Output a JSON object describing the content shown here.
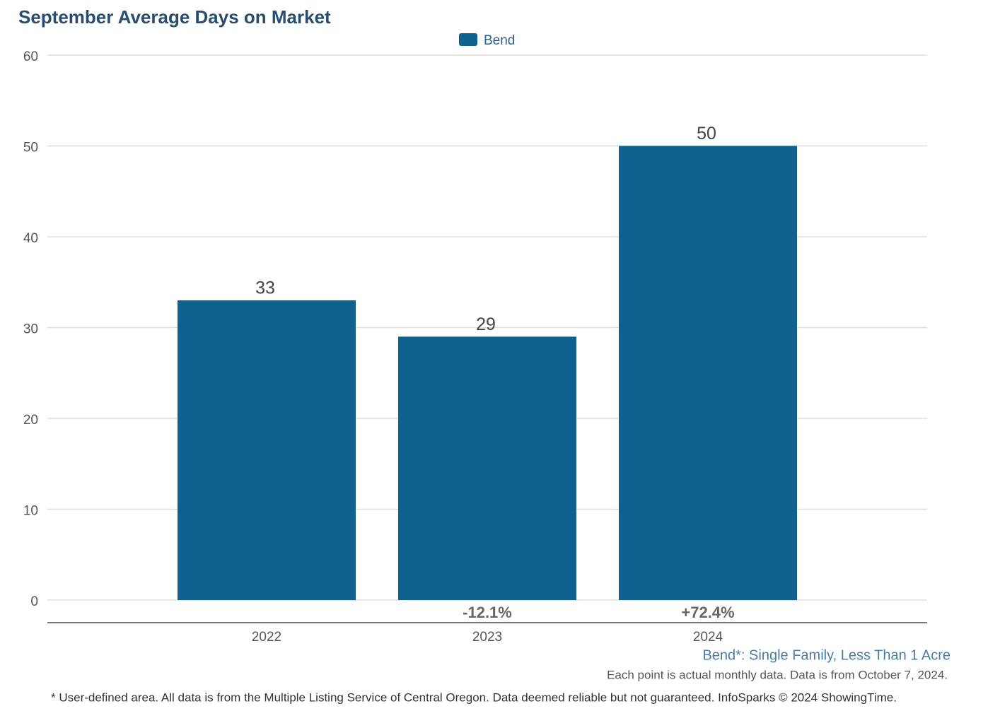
{
  "chart_data": {
    "type": "bar",
    "title": "September Average Days on Market",
    "categories": [
      "2022",
      "2023",
      "2024"
    ],
    "series": [
      {
        "name": "Bend",
        "color": "#0f6190",
        "values": [
          33,
          29,
          50
        ]
      }
    ],
    "change_labels": [
      null,
      "-12.1%",
      "+72.4%"
    ],
    "ylim": [
      0,
      60
    ],
    "yticks": [
      0,
      10,
      20,
      30,
      40,
      50,
      60
    ],
    "grid": true,
    "legend": "top",
    "area_note": "Bend*: Single Family, Less Than 1 Acre",
    "data_note": "Each point is actual monthly data. Data is from October 7, 2024.",
    "footnote": "* User-defined area. All data is from the Multiple Listing Service of Central Oregon. Data deemed reliable but not guaranteed. InfoSparks © 2024 ShowingTime."
  }
}
